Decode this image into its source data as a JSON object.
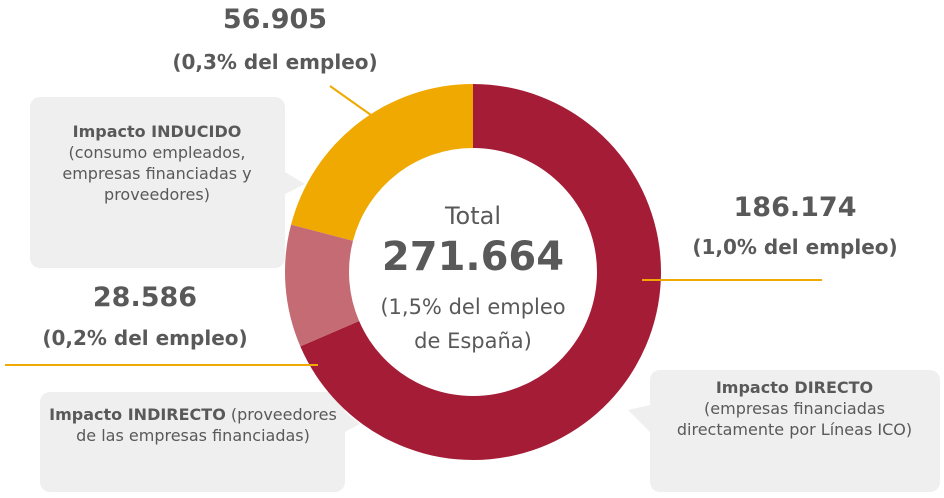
{
  "chart_data": {
    "type": "donut",
    "categories": [
      "Impacto DIRECTO",
      "Impacto INDIRECTO",
      "Impacto INDUCIDO"
    ],
    "descriptions": [
      "(empresas financiadas directamente por Líneas ICO)",
      "(proveedores de las empresas financiadas)",
      "(consumo empleados, empresas financiadas y proveedores)"
    ],
    "values": [
      186174,
      28586,
      56905
    ],
    "value_labels": [
      "186.174",
      "28.586",
      "56.905"
    ],
    "shares": [
      "(1,0% del empleo)",
      "(0,2% del empleo)",
      "(0,3% del empleo)"
    ],
    "colors": [
      "#a51c36",
      "#c46b73",
      "#efa900"
    ],
    "center_title": "Total",
    "center_value": "271.664",
    "center_note": "(1,5% del empleo de España)"
  }
}
